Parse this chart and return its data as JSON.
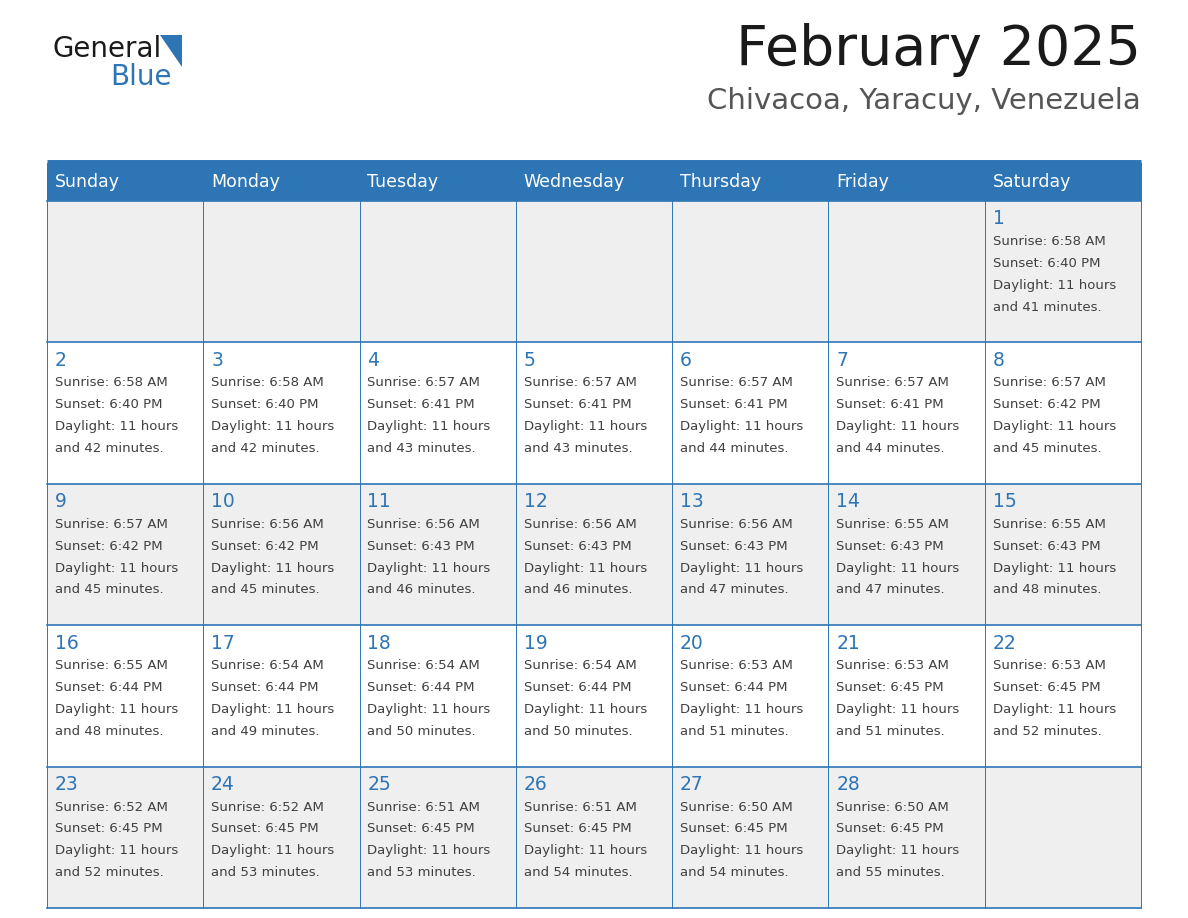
{
  "title": "February 2025",
  "subtitle": "Chivacoa, Yaracuy, Venezuela",
  "header_bg_color": "#2E75B6",
  "header_text_color": "#FFFFFF",
  "cell_bg_even": "#EFEFEF",
  "cell_bg_odd": "#FFFFFF",
  "day_number_color": "#2E75B6",
  "text_color": "#404040",
  "line_color": "#2E75B6",
  "days_of_week": [
    "Sunday",
    "Monday",
    "Tuesday",
    "Wednesday",
    "Thursday",
    "Friday",
    "Saturday"
  ],
  "weeks": [
    [
      {
        "day": "",
        "sunrise": "",
        "sunset": "",
        "daylight": ""
      },
      {
        "day": "",
        "sunrise": "",
        "sunset": "",
        "daylight": ""
      },
      {
        "day": "",
        "sunrise": "",
        "sunset": "",
        "daylight": ""
      },
      {
        "day": "",
        "sunrise": "",
        "sunset": "",
        "daylight": ""
      },
      {
        "day": "",
        "sunrise": "",
        "sunset": "",
        "daylight": ""
      },
      {
        "day": "",
        "sunrise": "",
        "sunset": "",
        "daylight": ""
      },
      {
        "day": "1",
        "sunrise": "6:58 AM",
        "sunset": "6:40 PM",
        "daylight": "11 hours and 41 minutes."
      }
    ],
    [
      {
        "day": "2",
        "sunrise": "6:58 AM",
        "sunset": "6:40 PM",
        "daylight": "11 hours and 42 minutes."
      },
      {
        "day": "3",
        "sunrise": "6:58 AM",
        "sunset": "6:40 PM",
        "daylight": "11 hours and 42 minutes."
      },
      {
        "day": "4",
        "sunrise": "6:57 AM",
        "sunset": "6:41 PM",
        "daylight": "11 hours and 43 minutes."
      },
      {
        "day": "5",
        "sunrise": "6:57 AM",
        "sunset": "6:41 PM",
        "daylight": "11 hours and 43 minutes."
      },
      {
        "day": "6",
        "sunrise": "6:57 AM",
        "sunset": "6:41 PM",
        "daylight": "11 hours and 44 minutes."
      },
      {
        "day": "7",
        "sunrise": "6:57 AM",
        "sunset": "6:41 PM",
        "daylight": "11 hours and 44 minutes."
      },
      {
        "day": "8",
        "sunrise": "6:57 AM",
        "sunset": "6:42 PM",
        "daylight": "11 hours and 45 minutes."
      }
    ],
    [
      {
        "day": "9",
        "sunrise": "6:57 AM",
        "sunset": "6:42 PM",
        "daylight": "11 hours and 45 minutes."
      },
      {
        "day": "10",
        "sunrise": "6:56 AM",
        "sunset": "6:42 PM",
        "daylight": "11 hours and 45 minutes."
      },
      {
        "day": "11",
        "sunrise": "6:56 AM",
        "sunset": "6:43 PM",
        "daylight": "11 hours and 46 minutes."
      },
      {
        "day": "12",
        "sunrise": "6:56 AM",
        "sunset": "6:43 PM",
        "daylight": "11 hours and 46 minutes."
      },
      {
        "day": "13",
        "sunrise": "6:56 AM",
        "sunset": "6:43 PM",
        "daylight": "11 hours and 47 minutes."
      },
      {
        "day": "14",
        "sunrise": "6:55 AM",
        "sunset": "6:43 PM",
        "daylight": "11 hours and 47 minutes."
      },
      {
        "day": "15",
        "sunrise": "6:55 AM",
        "sunset": "6:43 PM",
        "daylight": "11 hours and 48 minutes."
      }
    ],
    [
      {
        "day": "16",
        "sunrise": "6:55 AM",
        "sunset": "6:44 PM",
        "daylight": "11 hours and 48 minutes."
      },
      {
        "day": "17",
        "sunrise": "6:54 AM",
        "sunset": "6:44 PM",
        "daylight": "11 hours and 49 minutes."
      },
      {
        "day": "18",
        "sunrise": "6:54 AM",
        "sunset": "6:44 PM",
        "daylight": "11 hours and 50 minutes."
      },
      {
        "day": "19",
        "sunrise": "6:54 AM",
        "sunset": "6:44 PM",
        "daylight": "11 hours and 50 minutes."
      },
      {
        "day": "20",
        "sunrise": "6:53 AM",
        "sunset": "6:44 PM",
        "daylight": "11 hours and 51 minutes."
      },
      {
        "day": "21",
        "sunrise": "6:53 AM",
        "sunset": "6:45 PM",
        "daylight": "11 hours and 51 minutes."
      },
      {
        "day": "22",
        "sunrise": "6:53 AM",
        "sunset": "6:45 PM",
        "daylight": "11 hours and 52 minutes."
      }
    ],
    [
      {
        "day": "23",
        "sunrise": "6:52 AM",
        "sunset": "6:45 PM",
        "daylight": "11 hours and 52 minutes."
      },
      {
        "day": "24",
        "sunrise": "6:52 AM",
        "sunset": "6:45 PM",
        "daylight": "11 hours and 53 minutes."
      },
      {
        "day": "25",
        "sunrise": "6:51 AM",
        "sunset": "6:45 PM",
        "daylight": "11 hours and 53 minutes."
      },
      {
        "day": "26",
        "sunrise": "6:51 AM",
        "sunset": "6:45 PM",
        "daylight": "11 hours and 54 minutes."
      },
      {
        "day": "27",
        "sunrise": "6:50 AM",
        "sunset": "6:45 PM",
        "daylight": "11 hours and 54 minutes."
      },
      {
        "day": "28",
        "sunrise": "6:50 AM",
        "sunset": "6:45 PM",
        "daylight": "11 hours and 55 minutes."
      },
      {
        "day": "",
        "sunrise": "",
        "sunset": "",
        "daylight": ""
      }
    ]
  ],
  "logo_text1": "General",
  "logo_text2": "Blue",
  "logo_color1": "#1a1a1a",
  "logo_color2": "#2E75B6",
  "logo_triangle_color": "#2E75B6",
  "figsize": [
    11.88,
    9.18
  ],
  "dpi": 100
}
